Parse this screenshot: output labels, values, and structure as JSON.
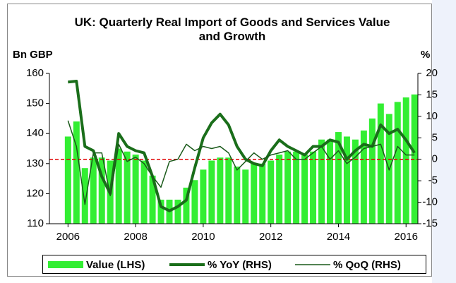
{
  "chart_data": {
    "type": "bar_line",
    "title": "UK: Quarterly Real Import of Goods and Services Value and Growth",
    "ylabel": "Bn GBP",
    "y2label": "%",
    "x": [
      2006,
      2006.25,
      2006.5,
      2006.75,
      2007,
      2007.25,
      2007.5,
      2007.75,
      2008,
      2008.25,
      2008.5,
      2008.75,
      2009,
      2009.25,
      2009.5,
      2009.75,
      2010,
      2010.25,
      2010.5,
      2010.75,
      2011,
      2011.25,
      2011.5,
      2011.75,
      2012,
      2012.25,
      2012.5,
      2012.75,
      2013,
      2013.25,
      2013.5,
      2013.75,
      2014,
      2014.25,
      2014.5,
      2014.75,
      2015,
      2015.25,
      2015.5,
      2015.75,
      2016,
      2016.25
    ],
    "series": [
      {
        "name": "Value (LHS)",
        "color": "#33ee33",
        "kind": "bar",
        "values": [
          139,
          144,
          128.5,
          132,
          132,
          131,
          135,
          134,
          133,
          131,
          126,
          118,
          118,
          118,
          122,
          124.5,
          128,
          131,
          132,
          132,
          129,
          128,
          130,
          130,
          131,
          133,
          134,
          134,
          133,
          134,
          138,
          138,
          140.5,
          139,
          138,
          141,
          145,
          150,
          146.5,
          150.5,
          152,
          153
        ]
      },
      {
        "name": "% YoY (RHS)",
        "color": "#1a6e1a",
        "kind": "line",
        "width": 4,
        "axis": "y2",
        "values": [
          18,
          18.2,
          3,
          2,
          -4,
          -8,
          6,
          3,
          2,
          1.5,
          -4,
          -11,
          -12,
          -11,
          -9.5,
          -2,
          5,
          8.5,
          10.5,
          8,
          3,
          0,
          -1,
          -1.5,
          2,
          4.5,
          3,
          2,
          1,
          3,
          3,
          4.5,
          4,
          0,
          2,
          3.5,
          3,
          8,
          6,
          7,
          4.5,
          1.5
        ]
      },
      {
        "name": "% QoQ (RHS)",
        "color": "#1a5a1a",
        "kind": "line",
        "width": 1.5,
        "axis": "y2",
        "values": [
          9,
          3,
          -10.5,
          1.5,
          1.5,
          -8.5,
          3.5,
          -0.5,
          0.5,
          -1,
          -4,
          -6.5,
          -0.5,
          0,
          3.5,
          2,
          3,
          2.5,
          3,
          1.5,
          -2.5,
          -0.5,
          1.5,
          0,
          1,
          1.5,
          2,
          0,
          0,
          1.5,
          3,
          0,
          2,
          -1,
          0.5,
          2.5,
          3,
          3.5,
          -2.5,
          3,
          1,
          1
        ]
      }
    ],
    "xlim": [
      2005.45,
      2016.35
    ],
    "xticks": [
      2006,
      2008,
      2010,
      2012,
      2014,
      2016
    ],
    "ylim": [
      110,
      160
    ],
    "yticks": [
      110,
      120,
      130,
      140,
      150,
      160
    ],
    "y2lim": [
      -15,
      20
    ],
    "y2ticks": [
      -15,
      -10,
      -5,
      0,
      5,
      10,
      15,
      20
    ],
    "hline_y2": {
      "value": 0,
      "color": "#e00000"
    }
  }
}
